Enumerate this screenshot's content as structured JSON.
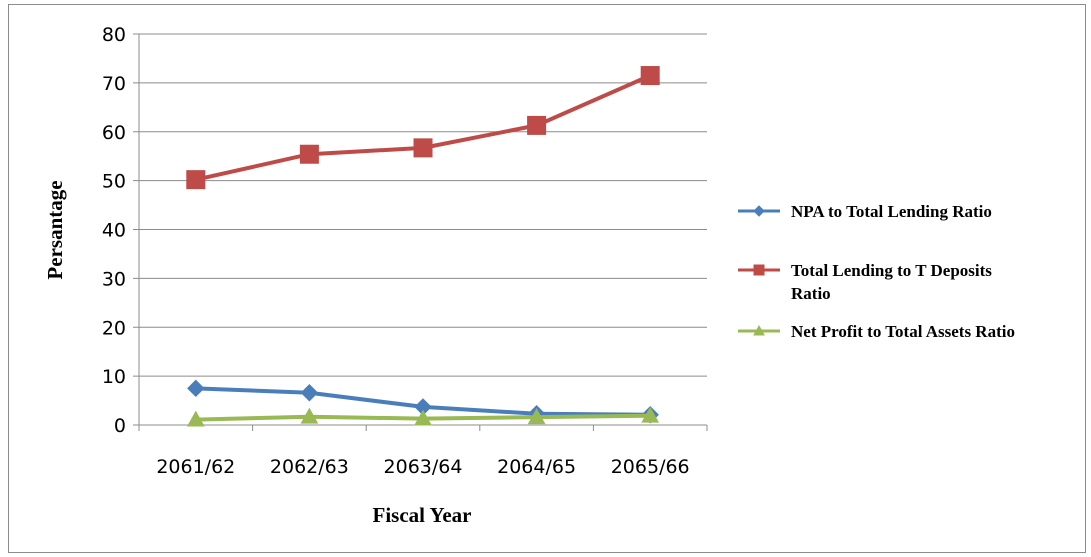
{
  "chart_data": {
    "type": "line",
    "categories": [
      "2061/62",
      "2062/63",
      "2063/64",
      "2064/65",
      "2065/66"
    ],
    "series": [
      {
        "name": "NPA to Total Lending Ratio",
        "values": [
          7.5,
          6.6,
          3.7,
          2.3,
          2.1
        ],
        "color": "#4a7ebb",
        "marker": "diamond"
      },
      {
        "name": "Total Lending to T Deposits Ratio",
        "values": [
          50.2,
          55.4,
          56.7,
          61.3,
          71.5
        ],
        "color": "#be4b48",
        "marker": "square"
      },
      {
        "name": "Net Profit to Total Assets Ratio",
        "values": [
          1.1,
          1.7,
          1.3,
          1.6,
          1.9
        ],
        "color": "#98b954",
        "marker": "triangle"
      }
    ],
    "xlabel": "Fiscal Year",
    "ylabel": "Persantage",
    "ylim": [
      0,
      80
    ],
    "yticks": [
      "0",
      "10",
      "20",
      "30",
      "40",
      "50",
      "60",
      "70",
      "80"
    ],
    "grid": "horizontal",
    "legend_position": "right"
  }
}
